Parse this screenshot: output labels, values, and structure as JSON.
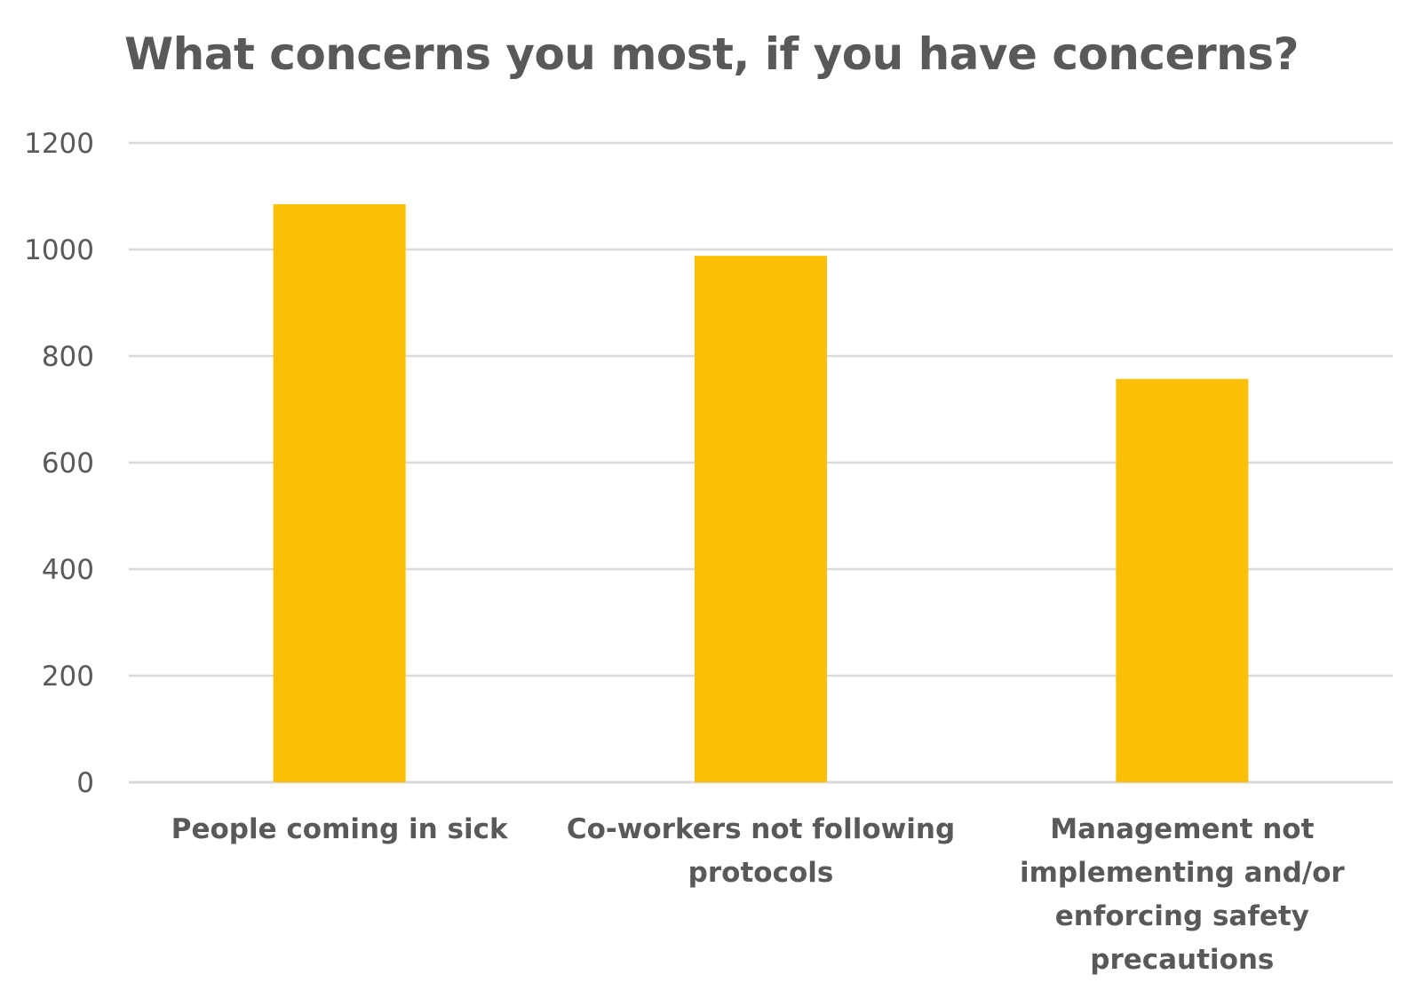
{
  "chart_data": {
    "type": "bar",
    "title": "What concerns you most, if you have concerns?",
    "categories": [
      [
        "People coming in sick"
      ],
      [
        "Co-workers not following",
        "protocols"
      ],
      [
        "Management not",
        "implementing and/or",
        "enforcing safety",
        "precautions"
      ]
    ],
    "category_names": [
      "People coming in sick",
      "Co-workers not following protocols",
      "Management not implementing and/or enforcing safety precautions"
    ],
    "values": [
      1085,
      988,
      757
    ],
    "ylim": [
      0,
      1200
    ],
    "yticks": [
      0,
      200,
      400,
      600,
      800,
      1000,
      1200
    ],
    "xlabel": "",
    "ylabel": "",
    "grid": true,
    "legend": "none",
    "colors": {
      "bar": "#FBBF05",
      "grid": "#D9D9D9",
      "text": "#595959"
    }
  }
}
